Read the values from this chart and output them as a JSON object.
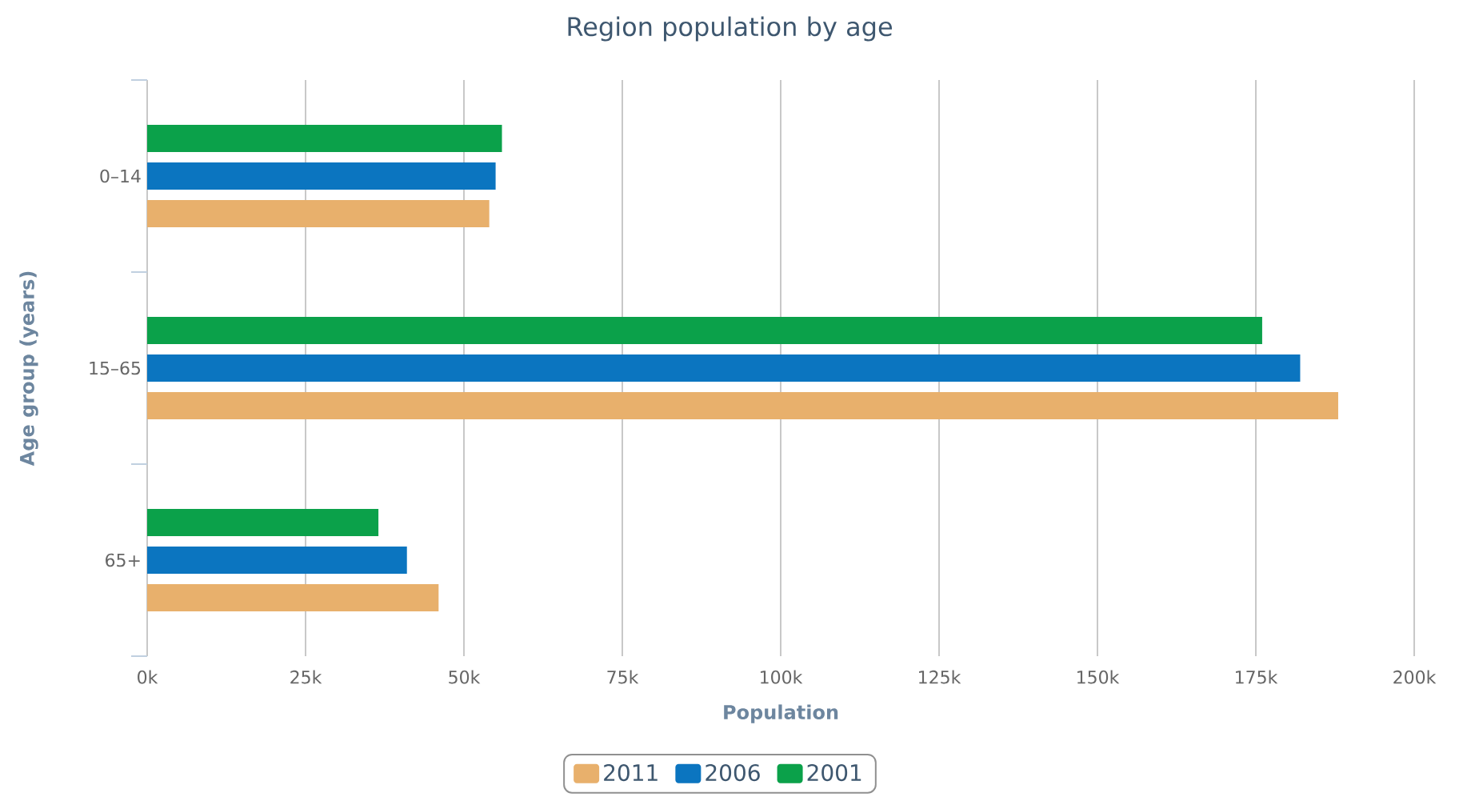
{
  "chart_data": {
    "type": "bar",
    "orientation": "horizontal",
    "title": "Region population by age",
    "xlabel": "Population",
    "ylabel": "Age group (years)",
    "categories": [
      "0–14",
      "15–65",
      "65+"
    ],
    "series": [
      {
        "name": "2011",
        "color": "#e8b06c",
        "values": [
          54000,
          188000,
          46000
        ]
      },
      {
        "name": "2006",
        "color": "#0b75c0",
        "values": [
          55000,
          182000,
          41000
        ]
      },
      {
        "name": "2001",
        "color": "#0ba14a",
        "values": [
          56000,
          176000,
          36500
        ]
      }
    ],
    "xlim": [
      0,
      200000
    ],
    "xticks": [
      {
        "value": 0,
        "label": "0k"
      },
      {
        "value": 25000,
        "label": "25k"
      },
      {
        "value": 50000,
        "label": "50k"
      },
      {
        "value": 75000,
        "label": "75k"
      },
      {
        "value": 100000,
        "label": "100k"
      },
      {
        "value": 125000,
        "label": "125k"
      },
      {
        "value": 150000,
        "label": "150k"
      },
      {
        "value": 175000,
        "label": "175k"
      },
      {
        "value": 200000,
        "label": "200k"
      }
    ],
    "grid": "x",
    "legend": "bottom"
  }
}
